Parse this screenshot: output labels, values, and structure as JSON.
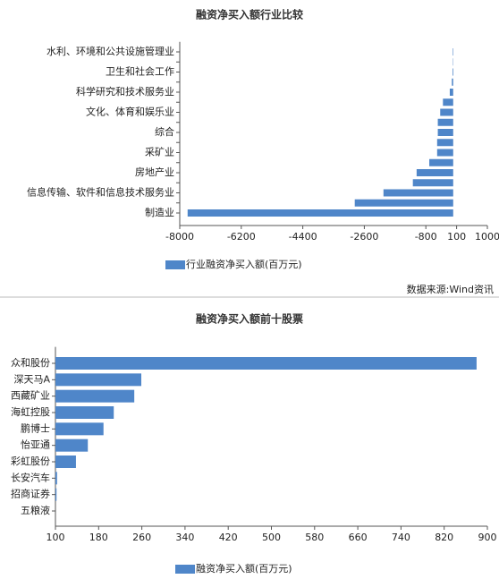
{
  "chart_data": [
    {
      "type": "bar",
      "orientation": "horizontal",
      "title": "融资净买入额行业比较",
      "categories": [
        "水利、环境和公共设施管理业",
        null,
        "卫生和社会工作",
        null,
        "科学研究和技术服务业",
        null,
        "文化、体育和娱乐业",
        null,
        "综合",
        null,
        "采矿业",
        null,
        "房地产业",
        null,
        "信息传输、软件和信息技术服务业",
        null,
        "制造业"
      ],
      "series": [
        {
          "name": "行业融资净买入额(百万元)",
          "color": "#4f86c9",
          "values": [
            -15,
            -10,
            -20,
            -40,
            -100,
            -300,
            -380,
            -450,
            -450,
            -470,
            -470,
            -700,
            -1070,
            -1180,
            -2040,
            -2880,
            -7770
          ]
        }
      ],
      "xlim": [
        -8000,
        1000
      ],
      "xticks": [
        -8000,
        -6200,
        -4400,
        -2600,
        -800,
        100,
        1000
      ],
      "source": "数据来源:Wind资讯"
    },
    {
      "type": "bar",
      "orientation": "horizontal",
      "title": "融资净买入额前十股票",
      "categories": [
        "众和股份",
        "深天马A",
        "西藏矿业",
        "海虹控股",
        "鹏博士",
        "怡亚通",
        "彩虹股份",
        "长安汽车",
        "招商证券",
        "五粮液"
      ],
      "series": [
        {
          "name": "融资净买入额(百万元)",
          "color": "#4f86c9",
          "values": [
            880,
            259,
            246,
            208,
            189,
            160,
            138,
            103,
            102,
            100
          ]
        }
      ],
      "xlim": [
        100,
        900
      ],
      "xticks": [
        100,
        180,
        260,
        340,
        420,
        500,
        580,
        660,
        740,
        820,
        900
      ]
    }
  ]
}
